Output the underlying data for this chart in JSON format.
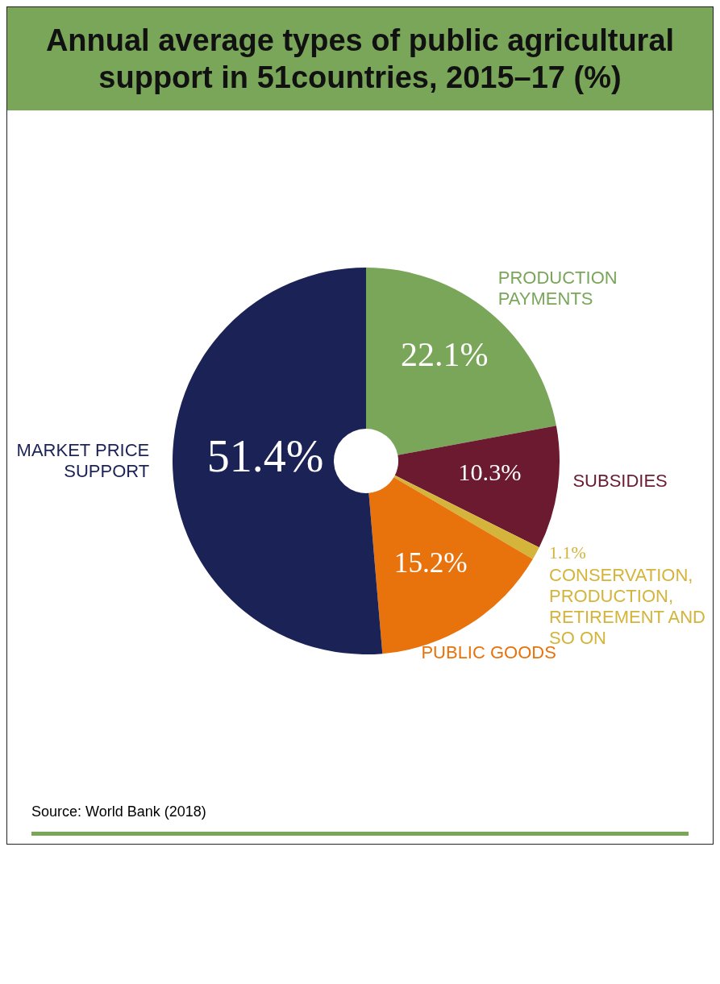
{
  "chart_data": {
    "type": "donut",
    "title": "Annual average types of public agricultural support in 51countries, 2015–17 (%)",
    "categories": [
      "PRODUCTION PAYMENTS",
      "SUBSIDIES",
      "CONSERVATION, PRODUCTION, RETIREMENT AND SO ON",
      "PUBLIC GOODS",
      "MARKET PRICE SUPPORT"
    ],
    "values": [
      22.1,
      10.3,
      1.1,
      15.2,
      51.4
    ],
    "colors": [
      "#7aa65a",
      "#6b1a30",
      "#d4b43a",
      "#e8730c",
      "#1b2255"
    ],
    "value_labels": [
      "22.1%",
      "10.3%",
      "1.1%",
      "15.2%",
      "51.4%"
    ],
    "annotations": [
      "Source: World Bank (2018)"
    ]
  }
}
